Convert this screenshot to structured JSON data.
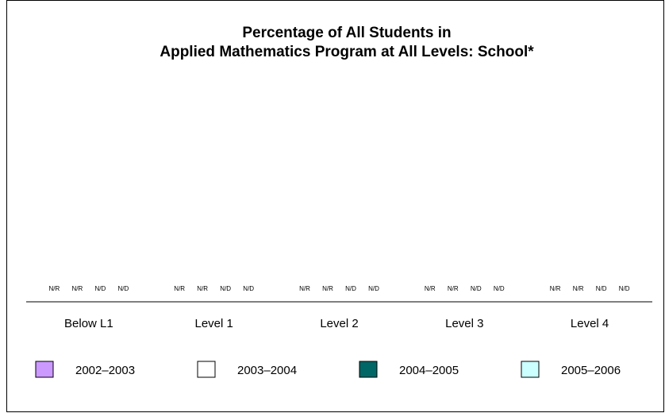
{
  "chart_data": {
    "type": "bar",
    "title_line1": "Percentage of All Students in",
    "title_line2": "Applied Mathematics Program at All Levels: School*",
    "xlabel": "",
    "ylabel": "",
    "categories": [
      "Below L1",
      "Level 1",
      "Level 2",
      "Level 3",
      "Level 4"
    ],
    "series": [
      {
        "name": "2002–2003",
        "color": "#cc99ff",
        "values": [
          null,
          null,
          null,
          null,
          null
        ],
        "labels": [
          "N/R",
          "N/R",
          "N/R",
          "N/R",
          "N/R"
        ]
      },
      {
        "name": "2003–2004",
        "color": "#ffffff",
        "values": [
          null,
          null,
          null,
          null,
          null
        ],
        "labels": [
          "N/R",
          "N/R",
          "N/R",
          "N/R",
          "N/R"
        ]
      },
      {
        "name": "2004–2005",
        "color": "#006666",
        "values": [
          null,
          null,
          null,
          null,
          null
        ],
        "labels": [
          "N/D",
          "N/D",
          "N/D",
          "N/D",
          "N/D"
        ]
      },
      {
        "name": "2005–2006",
        "color": "#ccffff",
        "values": [
          null,
          null,
          null,
          null,
          null
        ],
        "labels": [
          "N/D",
          "N/D",
          "N/D",
          "N/D",
          "N/D"
        ]
      }
    ],
    "legend_position": "bottom",
    "grid": false
  }
}
